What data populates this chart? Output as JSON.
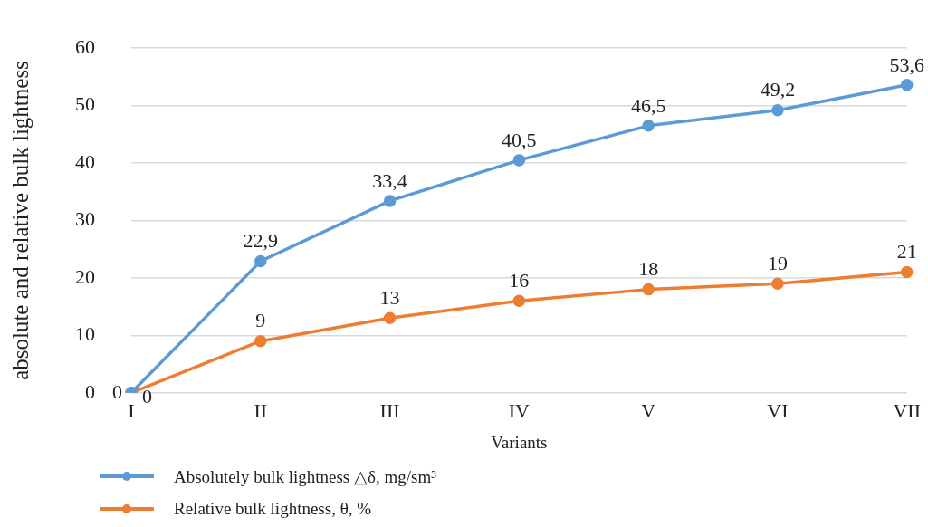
{
  "chart_data": {
    "type": "line",
    "xlabel": "Variants",
    "ylabel": "absolute and relative bulk lightness",
    "categories": [
      "I",
      "II",
      "III",
      "IV",
      "V",
      "VI",
      "VII"
    ],
    "series": [
      {
        "name": "Absolutely bulk  lightness △δ,  mg/sm³",
        "color": "#5b9bd5",
        "values": [
          0,
          22.9,
          33.4,
          40.5,
          46.5,
          49.2,
          53.6
        ],
        "value_labels": [
          "0",
          "22,9",
          "33,4",
          "40,5",
          "46,5",
          "49,2",
          "53,6"
        ]
      },
      {
        "name": "Relative bulk lightness, θ, %",
        "color": "#ed7d31",
        "values": [
          0,
          9,
          13,
          16,
          18,
          19,
          21
        ],
        "value_labels": [
          "0",
          "9",
          "13",
          "16",
          "18",
          "19",
          "21"
        ]
      }
    ],
    "ylim": [
      0,
      60
    ],
    "yticks": [
      0,
      10,
      20,
      30,
      40,
      50,
      60
    ],
    "grid": "y",
    "legend": "bottom left",
    "marker": "circle",
    "line_style": "solid"
  }
}
